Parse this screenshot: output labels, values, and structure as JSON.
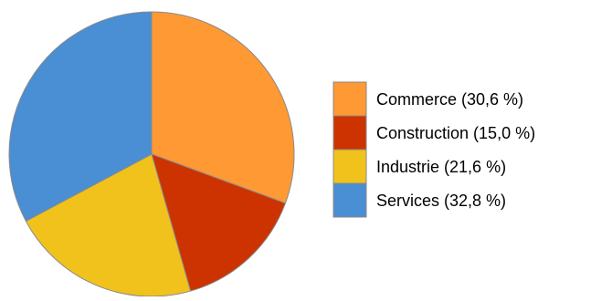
{
  "chart_data": {
    "type": "pie",
    "title": "",
    "slices": [
      {
        "label": "Commerce (30,6 %)",
        "value": 30.6,
        "color": "#FF9933"
      },
      {
        "label": "Construction (15,0 %)",
        "value": 15.0,
        "color": "#CC3300"
      },
      {
        "label": "Industrie (21,6 %)",
        "value": 21.6,
        "color": "#F1C21B"
      },
      {
        "label": "Services (32,8 %)",
        "value": 32.8,
        "color": "#4A8ED4"
      }
    ],
    "start_angle_deg": 0,
    "direction": "clockwise",
    "legend_position": "right"
  }
}
